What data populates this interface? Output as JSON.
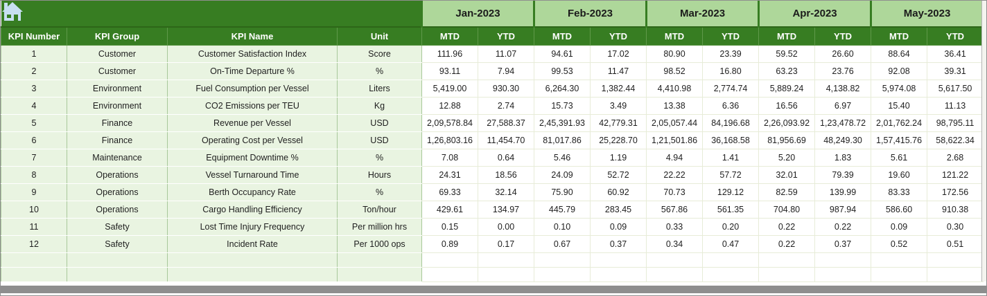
{
  "icons": {
    "home": "house glyph (pale blue on green)"
  },
  "colors": {
    "header_green": "#377D22",
    "month_band_green": "#AED79A",
    "row_pale_green": "#E9F4E1",
    "cell_white": "#FFFFFF",
    "grid_line": "#E7ECD8",
    "scrollbar_gray": "#8E8E8E",
    "home_icon_blue": "#C7DFF1"
  },
  "table": {
    "left_headers": [
      "KPI Number",
      "KPI Group",
      "KPI Name",
      "Unit"
    ],
    "months": [
      "Jan-2023",
      "Feb-2023",
      "Mar-2023",
      "Apr-2023",
      "May-2023"
    ],
    "sub_headers": [
      "MTD",
      "YTD"
    ],
    "empty_row_count": 2,
    "rows": [
      {
        "number": "1",
        "group": "Customer",
        "name": "Customer Satisfaction Index",
        "unit": "Score",
        "values": [
          "111.96",
          "11.07",
          "94.61",
          "17.02",
          "80.90",
          "23.39",
          "59.52",
          "26.60",
          "88.64",
          "36.41"
        ]
      },
      {
        "number": "2",
        "group": "Customer",
        "name": "On-Time Departure %",
        "unit": "%",
        "values": [
          "93.11",
          "7.94",
          "99.53",
          "11.47",
          "98.52",
          "16.80",
          "63.23",
          "23.76",
          "92.08",
          "39.31"
        ]
      },
      {
        "number": "3",
        "group": "Environment",
        "name": "Fuel Consumption per Vessel",
        "unit": "Liters",
        "values": [
          "5,419.00",
          "930.30",
          "6,264.30",
          "1,382.44",
          "4,410.98",
          "2,774.74",
          "5,889.24",
          "4,138.82",
          "5,974.08",
          "5,617.50"
        ]
      },
      {
        "number": "4",
        "group": "Environment",
        "name": "CO2 Emissions per TEU",
        "unit": "Kg",
        "values": [
          "12.88",
          "2.74",
          "15.73",
          "3.49",
          "13.38",
          "6.36",
          "16.56",
          "6.97",
          "15.40",
          "11.13"
        ]
      },
      {
        "number": "5",
        "group": "Finance",
        "name": "Revenue per Vessel",
        "unit": "USD",
        "values": [
          "2,09,578.84",
          "27,588.37",
          "2,45,391.93",
          "42,779.31",
          "2,05,057.44",
          "84,196.68",
          "2,26,093.92",
          "1,23,478.72",
          "2,01,762.24",
          "98,795.11"
        ]
      },
      {
        "number": "6",
        "group": "Finance",
        "name": "Operating Cost per Vessel",
        "unit": "USD",
        "values": [
          "1,26,803.16",
          "11,454.70",
          "81,017.86",
          "25,228.70",
          "1,21,501.86",
          "36,168.58",
          "81,956.69",
          "48,249.30",
          "1,57,415.76",
          "58,622.34"
        ]
      },
      {
        "number": "7",
        "group": "Maintenance",
        "name": "Equipment Downtime %",
        "unit": "%",
        "values": [
          "7.08",
          "0.64",
          "5.46",
          "1.19",
          "4.94",
          "1.41",
          "5.20",
          "1.83",
          "5.61",
          "2.68"
        ]
      },
      {
        "number": "8",
        "group": "Operations",
        "name": "Vessel Turnaround Time",
        "unit": "Hours",
        "values": [
          "24.31",
          "18.56",
          "24.09",
          "52.72",
          "22.22",
          "57.72",
          "32.01",
          "79.39",
          "19.60",
          "121.22"
        ]
      },
      {
        "number": "9",
        "group": "Operations",
        "name": "Berth Occupancy Rate",
        "unit": "%",
        "values": [
          "69.33",
          "32.14",
          "75.90",
          "60.92",
          "70.73",
          "129.12",
          "82.59",
          "139.99",
          "83.33",
          "172.56"
        ]
      },
      {
        "number": "10",
        "group": "Operations",
        "name": "Cargo Handling Efficiency",
        "unit": "Ton/hour",
        "values": [
          "429.61",
          "134.97",
          "445.79",
          "283.45",
          "567.86",
          "561.35",
          "704.80",
          "987.94",
          "586.60",
          "910.38"
        ]
      },
      {
        "number": "11",
        "group": "Safety",
        "name": "Lost Time Injury Frequency",
        "unit": "Per million hrs",
        "values": [
          "0.15",
          "0.00",
          "0.10",
          "0.09",
          "0.33",
          "0.20",
          "0.22",
          "0.22",
          "0.09",
          "0.30"
        ]
      },
      {
        "number": "12",
        "group": "Safety",
        "name": "Incident Rate",
        "unit": "Per 1000 ops",
        "values": [
          "0.89",
          "0.17",
          "0.67",
          "0.37",
          "0.34",
          "0.47",
          "0.22",
          "0.37",
          "0.52",
          "0.51"
        ]
      }
    ]
  }
}
